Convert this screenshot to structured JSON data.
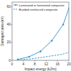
{
  "chart_data": {
    "type": "line",
    "x_label": "Impact energy (kJ/m)",
    "y_label": "Damaged area (m²)",
    "xlim": [
      0,
      20
    ],
    "xticks": [
      0,
      4,
      8,
      12,
      16,
      20
    ],
    "ylim": [
      0,
      65
    ],
    "yticks": [
      0,
      20,
      40,
      60
    ],
    "legend": "upper left",
    "series": [
      {
        "name": "Laminated or laminated composite",
        "color": "#3c9ad6",
        "marker": "circle",
        "line_style": "solid",
        "x": [
          2,
          6,
          10,
          14,
          18,
          20
        ],
        "values": [
          1,
          4,
          10,
          22,
          40,
          58
        ]
      },
      {
        "name": "Braided-reinforced composite",
        "color": "#3c9ad6",
        "marker": "none",
        "line_style": "dashed",
        "x": [
          2,
          6,
          10,
          14,
          18,
          20
        ],
        "values": [
          0.5,
          1.5,
          3,
          5,
          7,
          9
        ]
      }
    ]
  }
}
